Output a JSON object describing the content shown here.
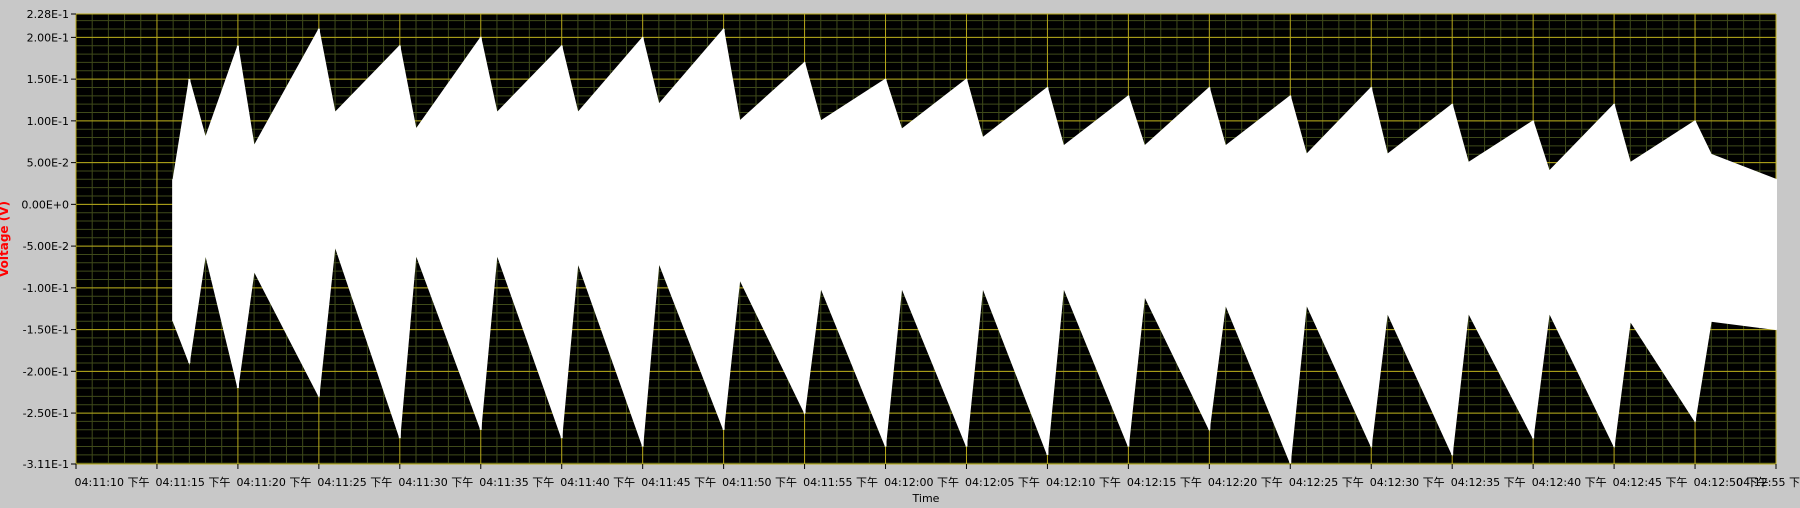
{
  "chart_data": {
    "type": "line",
    "xlabel": "Time",
    "ylabel": "Voltage (V)",
    "ylim": [
      -0.311,
      0.228
    ],
    "grid": true,
    "grid_minor": true,
    "plot_background": "#000000",
    "frame_background": "#c8c8c8",
    "grid_major_color": "#b8a81a",
    "grid_minor_color": "#3f4a1a",
    "series_color": "#ffffff",
    "ylabel_color": "#ff0000",
    "x_start_seconds_label": "04:11:10",
    "x_tick_labels": [
      "04:11:10 下午",
      "04:11:15 下午",
      "04:11:20 下午",
      "04:11:25 下午",
      "04:11:30 下午",
      "04:11:35 下午",
      "04:11:40 下午",
      "04:11:45 下午",
      "04:11:50 下午",
      "04:11:55 下午",
      "04:12:00 下午",
      "04:12:05 下午",
      "04:12:10 下午",
      "04:12:15 下午",
      "04:12:20 下午",
      "04:12:25 下午",
      "04:12:30 下午",
      "04:12:35 下午",
      "04:12:40 下午",
      "04:12:45 下午",
      "04:12:50 下午",
      "04:12:55 下"
    ],
    "y_tick_labels": [
      "2.28E-1",
      "2.00E-1",
      "1.50E-1",
      "1.00E-1",
      "5.00E-2",
      "0.00E+0",
      "-5.00E-2",
      "-1.00E-1",
      "-1.50E-1",
      "-2.00E-1",
      "-2.50E-1",
      "-3.11E-1"
    ],
    "y_tick_values": [
      0.228,
      0.2,
      0.15,
      0.1,
      0.05,
      0,
      -0.05,
      -0.1,
      -0.15,
      -0.2,
      -0.25,
      -0.311
    ],
    "x": [
      "04:11:16",
      "04:11:17",
      "04:11:18",
      "04:11:20",
      "04:11:21",
      "04:11:25",
      "04:11:26",
      "04:11:30",
      "04:11:31",
      "04:11:35",
      "04:11:36",
      "04:11:40",
      "04:11:41",
      "04:11:45",
      "04:11:46",
      "04:11:50",
      "04:11:51",
      "04:11:55",
      "04:11:56",
      "04:12:00",
      "04:12:01",
      "04:12:05",
      "04:12:06",
      "04:12:10",
      "04:12:11",
      "04:12:15",
      "04:12:16",
      "04:12:20",
      "04:12:21",
      "04:12:25",
      "04:12:26",
      "04:12:30",
      "04:12:31",
      "04:12:35",
      "04:12:36",
      "04:12:40",
      "04:12:41",
      "04:12:45",
      "04:12:46",
      "04:12:50",
      "04:12:51",
      "04:12:55"
    ],
    "series": [
      {
        "values_upper": [
          0.03,
          0.15,
          0.08,
          0.19,
          0.07,
          0.21,
          0.11,
          0.19,
          0.09,
          0.2,
          0.11,
          0.19,
          0.11,
          0.2,
          0.12,
          0.21,
          0.1,
          0.17,
          0.1,
          0.15,
          0.09,
          0.15,
          0.08,
          0.14,
          0.07,
          0.13,
          0.07,
          0.14,
          0.07,
          0.13,
          0.06,
          0.14,
          0.06,
          0.12,
          0.05,
          0.1,
          0.04,
          0.12,
          0.05,
          0.1,
          0.06,
          0.03
        ],
        "values_lower": [
          -0.14,
          -0.19,
          -0.06,
          -0.22,
          -0.08,
          -0.23,
          -0.05,
          -0.28,
          -0.06,
          -0.27,
          -0.06,
          -0.28,
          -0.07,
          -0.29,
          -0.07,
          -0.27,
          -0.09,
          -0.25,
          -0.1,
          -0.29,
          -0.1,
          -0.29,
          -0.1,
          -0.3,
          -0.1,
          -0.29,
          -0.11,
          -0.27,
          -0.12,
          -0.31,
          -0.12,
          -0.29,
          -0.13,
          -0.3,
          -0.13,
          -0.28,
          -0.13,
          -0.29,
          -0.14,
          -0.26,
          -0.14,
          -0.15
        ]
      }
    ]
  }
}
